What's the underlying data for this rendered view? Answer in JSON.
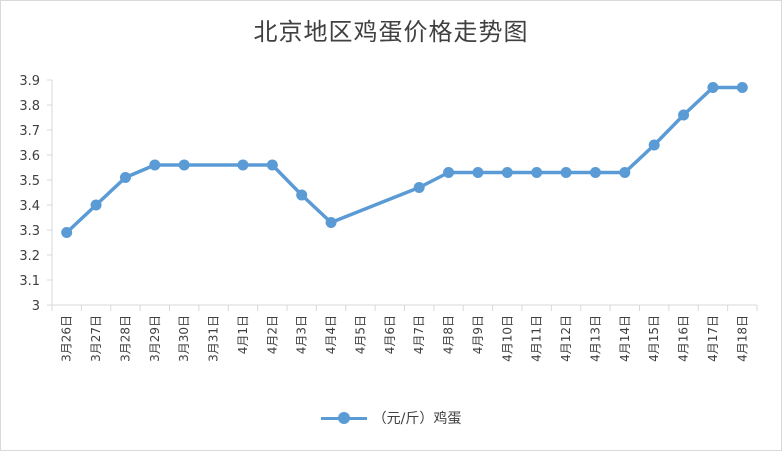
{
  "chart_data": {
    "type": "line",
    "title": "北京地区鸡蛋价格走势图",
    "categories": [
      "3月26日",
      "3月27日",
      "3月28日",
      "3月29日",
      "3月30日",
      "3月31日",
      "4月1日",
      "4月2日",
      "4月3日",
      "4月4日",
      "4月5日",
      "4月6日",
      "4月7日",
      "4月8日",
      "4月9日",
      "4月10日",
      "4月11日",
      "4月12日",
      "4月13日",
      "4月14日",
      "4月15日",
      "4月16日",
      "4月17日",
      "4月18日"
    ],
    "series": [
      {
        "name": "（元/斤）鸡蛋",
        "values": [
          3.29,
          3.4,
          3.51,
          3.56,
          3.56,
          null,
          3.56,
          3.56,
          3.44,
          3.33,
          null,
          null,
          3.47,
          3.53,
          3.53,
          3.53,
          3.53,
          3.53,
          3.53,
          3.53,
          3.64,
          3.76,
          3.87,
          3.87
        ],
        "color": "#5b9bd5"
      }
    ],
    "yticks": [
      "3",
      "3.1",
      "3.2",
      "3.3",
      "3.4",
      "3.5",
      "3.6",
      "3.7",
      "3.8",
      "3.9"
    ],
    "ylim": [
      3,
      3.9
    ],
    "grid": false,
    "legend_position": "bottom"
  }
}
